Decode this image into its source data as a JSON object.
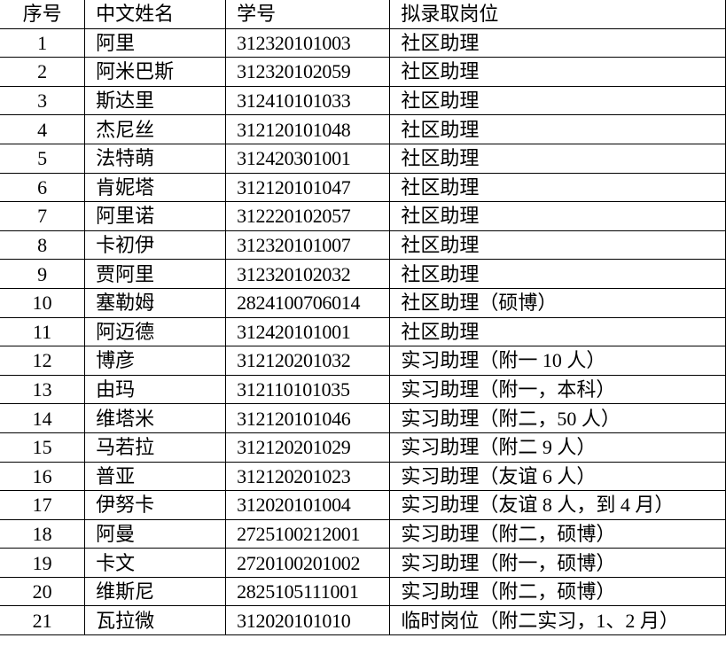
{
  "table": {
    "headers": [
      "序号",
      "中文姓名",
      "学号",
      "拟录取岗位"
    ],
    "rows": [
      [
        "1",
        "阿里",
        "312320101003",
        "社区助理"
      ],
      [
        "2",
        "阿米巴斯",
        "312320102059",
        "社区助理"
      ],
      [
        "3",
        "斯达里",
        "312410101033",
        "社区助理"
      ],
      [
        "4",
        "杰尼丝",
        "312120101048",
        "社区助理"
      ],
      [
        "5",
        "法特萌",
        "312420301001",
        "社区助理"
      ],
      [
        "6",
        "肯妮塔",
        "312120101047",
        "社区助理"
      ],
      [
        "7",
        "阿里诺",
        "312220102057",
        "社区助理"
      ],
      [
        "8",
        "卡初伊",
        "312320101007",
        "社区助理"
      ],
      [
        "9",
        "贾阿里",
        "312320102032",
        "社区助理"
      ],
      [
        "10",
        "塞勒姆",
        "2824100706014",
        "社区助理（硕博）"
      ],
      [
        "11",
        "阿迈德",
        "312420101001",
        "社区助理"
      ],
      [
        "12",
        "博彦",
        "312120201032",
        "实习助理（附一 10 人）"
      ],
      [
        "13",
        "由玛",
        "312110101035",
        "实习助理（附一，本科）"
      ],
      [
        "14",
        "维塔米",
        "312120101046",
        "实习助理（附二，50 人）"
      ],
      [
        "15",
        "马若拉",
        "312120201029",
        "实习助理（附二 9 人）"
      ],
      [
        "16",
        "普亚",
        "312120201023",
        "实习助理（友谊 6 人）"
      ],
      [
        "17",
        "伊努卡",
        "312020101004",
        "实习助理（友谊 8 人，到 4 月）"
      ],
      [
        "18",
        "阿曼",
        "2725100212001",
        "实习助理（附二，硕博）"
      ],
      [
        "19",
        "卡文",
        "2720100201002",
        "实习助理（附一，硕博）"
      ],
      [
        "20",
        "维斯尼",
        "2825105111001",
        "实习助理（附二，硕博）"
      ],
      [
        "21",
        "瓦拉微",
        "312020101010",
        "临时岗位（附二实习，1、2 月）"
      ]
    ]
  }
}
